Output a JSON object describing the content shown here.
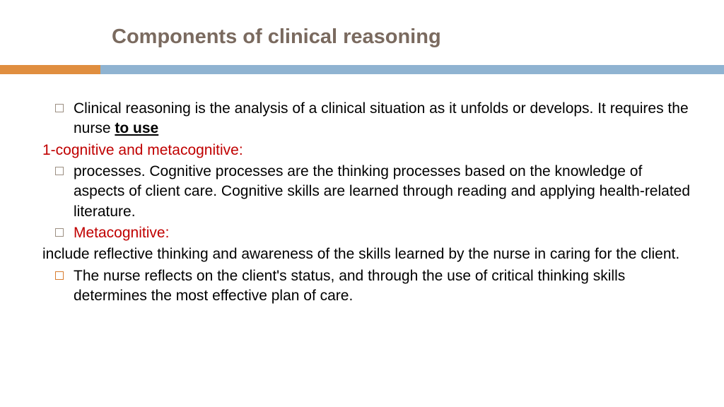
{
  "title": "Components of clinical reasoning",
  "colors": {
    "title": "#7a6a5f",
    "orange": "#e08e3f",
    "blue": "#8fb3d1",
    "red": "#c00000",
    "bullet_gray": "#9c8f82",
    "bullet_orange": "#d97c2e",
    "text": "#000000",
    "background": "#ffffff"
  },
  "bars": {
    "orange_width": 142,
    "height": 13
  },
  "body": {
    "font_size": 21,
    "line_height": 1.35
  },
  "lines": [
    {
      "bullet": "gray",
      "parts": [
        {
          "t": "Clinical reasoning is the analysis of a clinical situation as it unfolds or develops. It requires the nurse "
        },
        {
          "t": "to use",
          "u": true
        }
      ]
    },
    {
      "bullet": null,
      "red": true,
      "parts": [
        {
          "t": "1-cognitive and metacognitive:"
        }
      ]
    },
    {
      "bullet": "gray",
      "parts": [
        {
          "t": "processes. Cognitive processes are the thinking processes based on the knowledge of aspects of client care. Cognitive skills are learned through reading and applying health-related literature."
        }
      ]
    },
    {
      "bullet": "gray",
      "red": true,
      "parts": [
        {
          "t": " Metacognitive:"
        }
      ]
    },
    {
      "bullet": null,
      "parts": [
        {
          "t": "include reflective thinking and awareness of the skills learned by the nurse in caring for the client."
        }
      ]
    },
    {
      "bullet": "orange",
      "parts": [
        {
          "t": "The nurse reflects on the client's status, and through the use of critical thinking skills determines the most effective plan of care."
        }
      ]
    }
  ]
}
